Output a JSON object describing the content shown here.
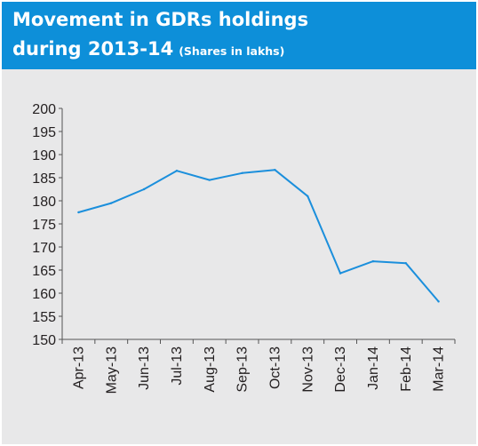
{
  "header": {
    "title_line1": "Movement in GDRs holdings",
    "title_line2": "during 2013-14",
    "subtitle": "(Shares in lakhs)"
  },
  "colors": {
    "header_bg": "#0d8fd9",
    "plot_bg": "#e8e8e9",
    "line": "#1b8fdc",
    "axis": "#555555"
  },
  "chart_data": {
    "type": "line",
    "title": "Movement in GDRs holdings during 2013-14",
    "subtitle": "(Shares in lakhs)",
    "xlabel": "",
    "ylabel": "",
    "categories": [
      "Apr-13",
      "May-13",
      "Jun-13",
      "Jul-13",
      "Aug-13",
      "Sep-13",
      "Oct-13",
      "Nov-13",
      "Dec-13",
      "Jan-14",
      "Feb-14",
      "Mar-14"
    ],
    "series": [
      {
        "values": [
          177.5,
          179.5,
          182.5,
          186.5,
          184.5,
          186,
          186.7,
          181,
          164.3,
          166.9,
          166.5,
          158.2
        ]
      }
    ],
    "ylim": [
      150,
      200
    ],
    "yticks": [
      150,
      155,
      160,
      165,
      170,
      175,
      180,
      185,
      190,
      195,
      200
    ],
    "grid": false,
    "legend": "none"
  }
}
